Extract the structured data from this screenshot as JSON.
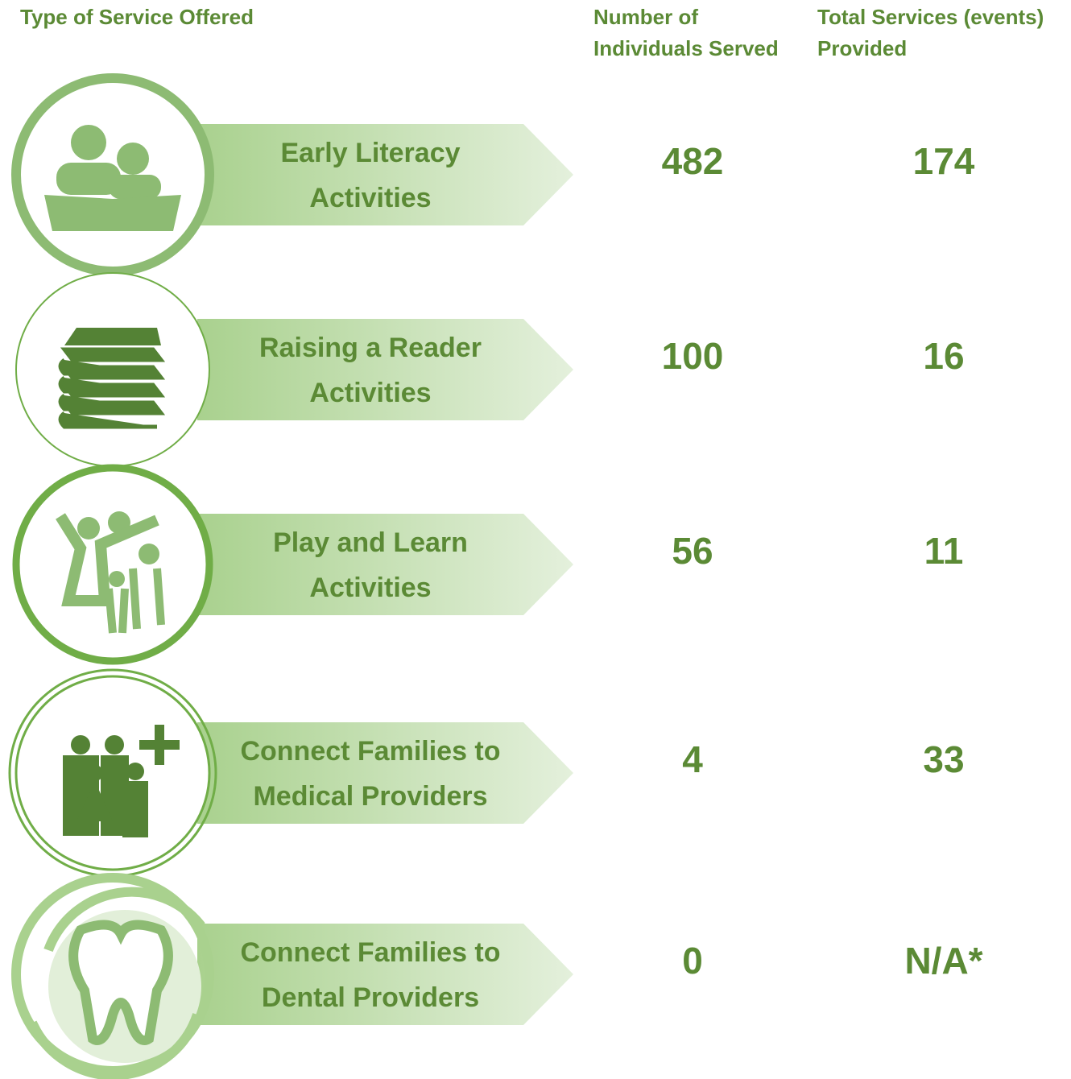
{
  "header": {
    "service": "Type of Service Offered",
    "individuals": [
      "Number of",
      "Individuals Served"
    ],
    "services": [
      "Total Services (events)",
      "Provided"
    ]
  },
  "rows": [
    {
      "label": [
        "Early Literacy",
        "Activities"
      ],
      "individuals": 482,
      "services": 174
    },
    {
      "label": [
        "Raising a Reader",
        "Activities"
      ],
      "individuals": 100,
      "services": 16
    },
    {
      "label": [
        "Play and Learn",
        "Activities"
      ],
      "individuals": 56,
      "services": 11
    },
    {
      "label": [
        "Connect Families to",
        "Medical Providers"
      ],
      "individuals": 4,
      "services": 33
    },
    {
      "label": [
        "Connect Families to",
        "Dental Providers"
      ],
      "individuals": 0,
      "services": "N/A*"
    }
  ]
}
